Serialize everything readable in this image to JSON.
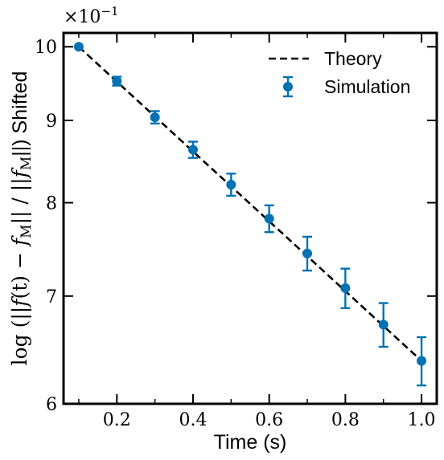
{
  "chart_data": {
    "type": "scatter",
    "xlabel": "Time (s)",
    "ylabel": {
      "pre": "log (||",
      "f1": "f",
      "paren": "(t)",
      "minus": " − ",
      "f2": "f",
      "sub1": "M",
      "mid": "|| / ||",
      "f3": "f",
      "sub2": "M",
      "post": "||) Shifted"
    },
    "offset_label": {
      "base": "×10",
      "exponent": "−1"
    },
    "yscale": "log",
    "xlim": [
      0.06,
      1.04
    ],
    "ylim": [
      6.0,
      10.2
    ],
    "x_ticks": [
      {
        "value": 0.2,
        "label": "0.2"
      },
      {
        "value": 0.4,
        "label": "0.4"
      },
      {
        "value": 0.6,
        "label": "0.6"
      },
      {
        "value": 0.8,
        "label": "0.8"
      },
      {
        "value": 1.0,
        "label": "1.0"
      }
    ],
    "x_minor_ticks": [
      0.1,
      0.3,
      0.5,
      0.7,
      0.9
    ],
    "y_ticks": [
      {
        "value": 6,
        "label": "6"
      },
      {
        "value": 7,
        "label": "7"
      },
      {
        "value": 8,
        "label": "8"
      },
      {
        "value": 9,
        "label": "9"
      },
      {
        "value": 10,
        "label": "10"
      }
    ],
    "series": [
      {
        "name": "Theory",
        "kind": "line",
        "style": "dashed",
        "color": "#000000",
        "x": [
          0.1,
          1.0
        ],
        "y": [
          10.0,
          6.38
        ]
      },
      {
        "name": "Simulation",
        "kind": "errorbar",
        "color": "#0072b2",
        "x": [
          0.1,
          0.2,
          0.3,
          0.4,
          0.5,
          0.6,
          0.7,
          0.8,
          0.9,
          1.0
        ],
        "y": [
          10.0,
          9.52,
          9.04,
          8.63,
          8.21,
          7.82,
          7.44,
          7.08,
          6.72,
          6.38
        ],
        "yerr": [
          0.0,
          0.06,
          0.08,
          0.1,
          0.13,
          0.15,
          0.18,
          0.2,
          0.21,
          0.22
        ]
      }
    ],
    "legend_position": "top-right",
    "grid": false
  }
}
